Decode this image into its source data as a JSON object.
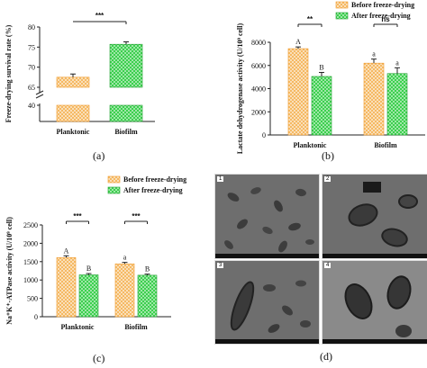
{
  "colors": {
    "before_fill": "#f5b963",
    "before_edge": "#f09a2a",
    "after_fill": "#3ccf4e",
    "after_edge": "#1e9e2d",
    "micro_background": "#6e6e6e"
  },
  "legend": {
    "before": "Before freeze-drying",
    "after": "After freeze-drying"
  },
  "panel_labels": {
    "a": "(a)",
    "b": "(b)",
    "c": "(c)",
    "d": "(d)"
  },
  "micrographs": {
    "tags": [
      "1",
      "2",
      "3",
      "4"
    ]
  },
  "chart_data": [
    {
      "type": "bar",
      "categories": [
        "Planktonic",
        "Biofilm"
      ],
      "values": [
        67.5,
        75.7
      ],
      "errors": [
        0.8,
        0.6
      ],
      "ylabel": "Freeze-drying survival rate (%)",
      "ylim": [
        40,
        80
      ],
      "axis_break": [
        40,
        65
      ],
      "yticks": [
        40,
        65,
        70,
        75,
        80
      ],
      "fill_style": [
        "before",
        "after"
      ],
      "significance": [
        {
          "from": 0,
          "to": 1,
          "label": "***"
        }
      ]
    },
    {
      "type": "bar",
      "categories": [
        "Planktonic",
        "Biofilm"
      ],
      "series": [
        {
          "name": "Before freeze-drying",
          "values": [
            7450,
            6200
          ],
          "errors": [
            150,
            350
          ]
        },
        {
          "name": "After freeze-drying",
          "values": [
            5050,
            5300
          ],
          "errors": [
            350,
            500
          ]
        }
      ],
      "letters": [
        [
          "A",
          "B"
        ],
        [
          "a",
          "a"
        ]
      ],
      "ylabel": "Lactate dehydrogenase activity (U/10⁹ cell)",
      "ylim": [
        0,
        8000
      ],
      "yticks": [
        0,
        2000,
        4000,
        6000,
        8000
      ],
      "significance": [
        {
          "group": 0,
          "label": "**"
        },
        {
          "group": 1,
          "label": "ns"
        }
      ],
      "legend_position": "top-right"
    },
    {
      "type": "bar",
      "categories": [
        "Planktonic",
        "Biofilm"
      ],
      "series": [
        {
          "name": "Before freeze-drying",
          "values": [
            1610,
            1440
          ],
          "errors": [
            50,
            40
          ]
        },
        {
          "name": "After freeze-drying",
          "values": [
            1140,
            1130
          ],
          "errors": [
            35,
            30
          ]
        }
      ],
      "letters": [
        [
          "A",
          "B"
        ],
        [
          "a",
          "B"
        ]
      ],
      "ylabel": "Na⁺K⁺-ATPase activity (U/10⁹ cell)",
      "ylim": [
        0,
        2500
      ],
      "yticks": [
        0,
        500,
        1000,
        1500,
        2000,
        2500
      ],
      "significance": [
        {
          "group": 0,
          "label": "***"
        },
        {
          "group": 1,
          "label": "***"
        }
      ],
      "legend_position": "top-left"
    }
  ]
}
